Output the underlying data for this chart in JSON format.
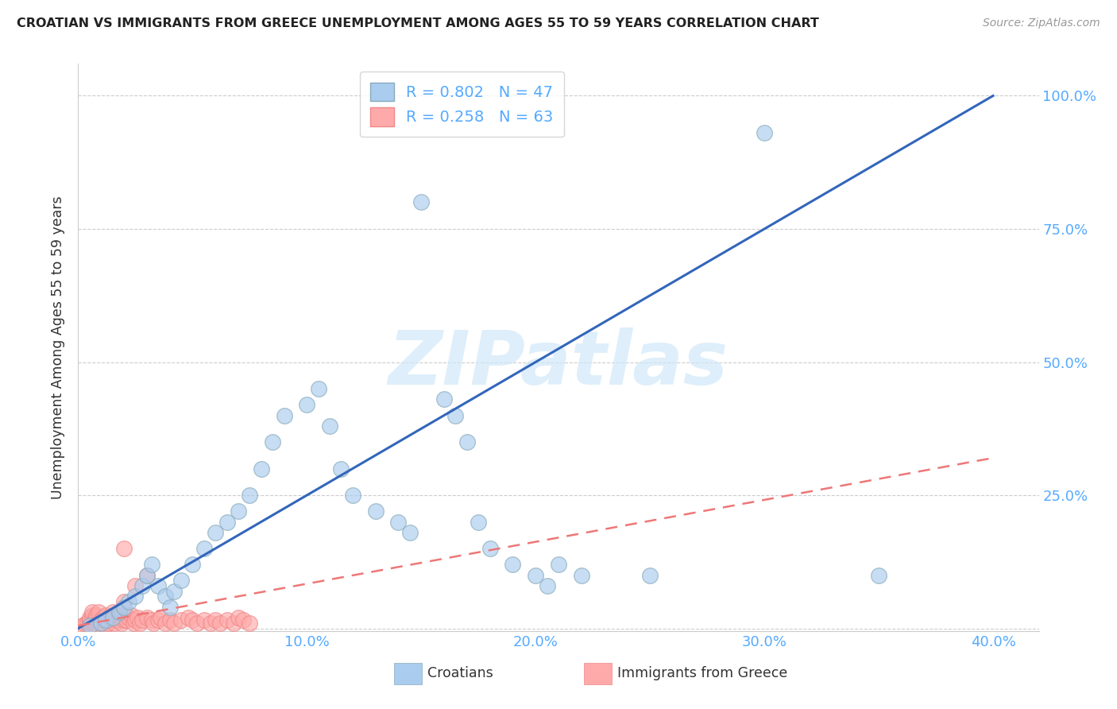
{
  "title": "CROATIAN VS IMMIGRANTS FROM GREECE UNEMPLOYMENT AMONG AGES 55 TO 59 YEARS CORRELATION CHART",
  "source": "Source: ZipAtlas.com",
  "ylabel": "Unemployment Among Ages 55 to 59 years",
  "blue_label": "Croatians",
  "pink_label": "Immigrants from Greece",
  "blue_R": 0.802,
  "blue_N": 47,
  "pink_R": 0.258,
  "pink_N": 63,
  "blue_color": "#AACCEE",
  "pink_color": "#FFAAAA",
  "blue_edge_color": "#88AABB",
  "pink_edge_color": "#EE8888",
  "blue_line_color": "#3366BB",
  "pink_line_color": "#EE7777",
  "axis_label_color": "#55AAFF",
  "title_color": "#222222",
  "source_color": "#999999",
  "background_color": "#FFFFFF",
  "grid_color": "#CCCCCC",
  "watermark": "ZIPatlas",
  "xlim": [
    0.0,
    0.42
  ],
  "ylim": [
    -0.005,
    1.06
  ],
  "yticks": [
    0.0,
    0.25,
    0.5,
    0.75,
    1.0
  ],
  "ytick_labels": [
    "",
    "25.0%",
    "50.0%",
    "75.0%",
    "100.0%"
  ],
  "xtick_labels": [
    "0.0%",
    "10.0%",
    "20.0%",
    "30.0%",
    "40.0%"
  ],
  "xticks": [
    0.0,
    0.1,
    0.2,
    0.3,
    0.4
  ],
  "blue_scatter_x": [
    0.005,
    0.01,
    0.012,
    0.015,
    0.018,
    0.02,
    0.022,
    0.025,
    0.028,
    0.03,
    0.032,
    0.035,
    0.038,
    0.04,
    0.042,
    0.045,
    0.05,
    0.055,
    0.06,
    0.065,
    0.07,
    0.075,
    0.08,
    0.085,
    0.09,
    0.1,
    0.105,
    0.11,
    0.115,
    0.12,
    0.13,
    0.14,
    0.145,
    0.15,
    0.16,
    0.165,
    0.17,
    0.175,
    0.18,
    0.19,
    0.2,
    0.205,
    0.21,
    0.22,
    0.25,
    0.3,
    0.35
  ],
  "blue_scatter_y": [
    0.005,
    0.01,
    0.015,
    0.02,
    0.03,
    0.04,
    0.05,
    0.06,
    0.08,
    0.1,
    0.12,
    0.08,
    0.06,
    0.04,
    0.07,
    0.09,
    0.12,
    0.15,
    0.18,
    0.2,
    0.22,
    0.25,
    0.3,
    0.35,
    0.4,
    0.42,
    0.45,
    0.38,
    0.3,
    0.25,
    0.22,
    0.2,
    0.18,
    0.8,
    0.43,
    0.4,
    0.35,
    0.2,
    0.15,
    0.12,
    0.1,
    0.08,
    0.12,
    0.1,
    0.1,
    0.93,
    0.1
  ],
  "pink_scatter_x": [
    0.002,
    0.003,
    0.004,
    0.005,
    0.005,
    0.005,
    0.006,
    0.006,
    0.007,
    0.007,
    0.008,
    0.008,
    0.009,
    0.009,
    0.01,
    0.01,
    0.011,
    0.012,
    0.012,
    0.013,
    0.013,
    0.014,
    0.015,
    0.015,
    0.016,
    0.017,
    0.018,
    0.018,
    0.019,
    0.02,
    0.02,
    0.021,
    0.022,
    0.023,
    0.024,
    0.025,
    0.026,
    0.027,
    0.028,
    0.03,
    0.03,
    0.032,
    0.033,
    0.035,
    0.036,
    0.038,
    0.04,
    0.042,
    0.045,
    0.048,
    0.05,
    0.052,
    0.055,
    0.058,
    0.06,
    0.062,
    0.065,
    0.068,
    0.07,
    0.072,
    0.075,
    0.02,
    0.025
  ],
  "pink_scatter_y": [
    0.005,
    0.008,
    0.01,
    0.012,
    0.015,
    0.02,
    0.025,
    0.03,
    0.01,
    0.015,
    0.02,
    0.025,
    0.03,
    0.005,
    0.01,
    0.015,
    0.02,
    0.025,
    0.005,
    0.01,
    0.015,
    0.02,
    0.025,
    0.03,
    0.01,
    0.015,
    0.02,
    0.025,
    0.01,
    0.015,
    0.05,
    0.015,
    0.02,
    0.025,
    0.01,
    0.015,
    0.02,
    0.01,
    0.015,
    0.02,
    0.1,
    0.015,
    0.01,
    0.015,
    0.02,
    0.01,
    0.015,
    0.01,
    0.015,
    0.02,
    0.015,
    0.01,
    0.015,
    0.01,
    0.015,
    0.01,
    0.015,
    0.01,
    0.02,
    0.015,
    0.01,
    0.15,
    0.08
  ],
  "blue_line_x": [
    0.0,
    0.4
  ],
  "blue_line_y": [
    0.0,
    1.0
  ],
  "pink_line_x": [
    0.0,
    0.4
  ],
  "pink_line_y": [
    0.005,
    0.32
  ]
}
